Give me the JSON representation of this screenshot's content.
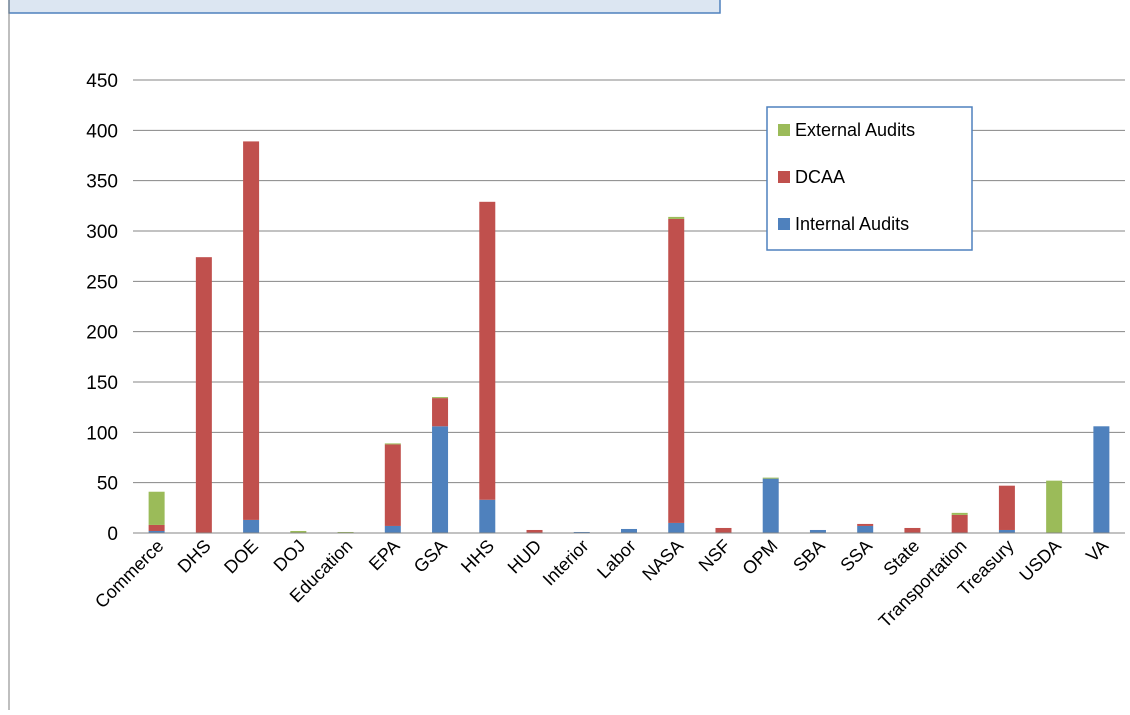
{
  "chart_data": {
    "type": "bar",
    "stacked": true,
    "title": "",
    "xlabel": "",
    "ylabel": "",
    "ylim": [
      0,
      450
    ],
    "yticks": [
      0,
      50,
      100,
      150,
      200,
      250,
      300,
      350,
      400,
      450
    ],
    "grid": true,
    "legend_position": "top-right",
    "categories": [
      "Commerce",
      "DHS",
      "DOE",
      "DOJ",
      "Education",
      "EPA",
      "GSA",
      "HHS",
      "HUD",
      "Interior",
      "Labor",
      "NASA",
      "NSF",
      "OPM",
      "SBA",
      "SSA",
      "State",
      "Transportation",
      "Treasury",
      "USDA",
      "VA"
    ],
    "series": [
      {
        "name": "Internal Audits",
        "color": "#4F81BD",
        "values": [
          2,
          0,
          13,
          0,
          0,
          7,
          106,
          33,
          0,
          1,
          4,
          10,
          0,
          54,
          3,
          7,
          0,
          0,
          3,
          0,
          106
        ]
      },
      {
        "name": "DCAA",
        "color": "#C0504D",
        "values": [
          6,
          274,
          376,
          0,
          0,
          81,
          28,
          296,
          3,
          0,
          0,
          302,
          5,
          0,
          0,
          2,
          5,
          18,
          44,
          0,
          0
        ]
      },
      {
        "name": "External Audits",
        "color": "#9BBB59",
        "values": [
          33,
          0,
          0,
          2,
          1,
          1,
          1,
          0,
          0,
          0,
          0,
          2,
          0,
          1,
          0,
          0,
          0,
          2,
          0,
          52,
          0
        ]
      }
    ],
    "legend_order": [
      "External Audits",
      "DCAA",
      "Internal Audits"
    ]
  }
}
